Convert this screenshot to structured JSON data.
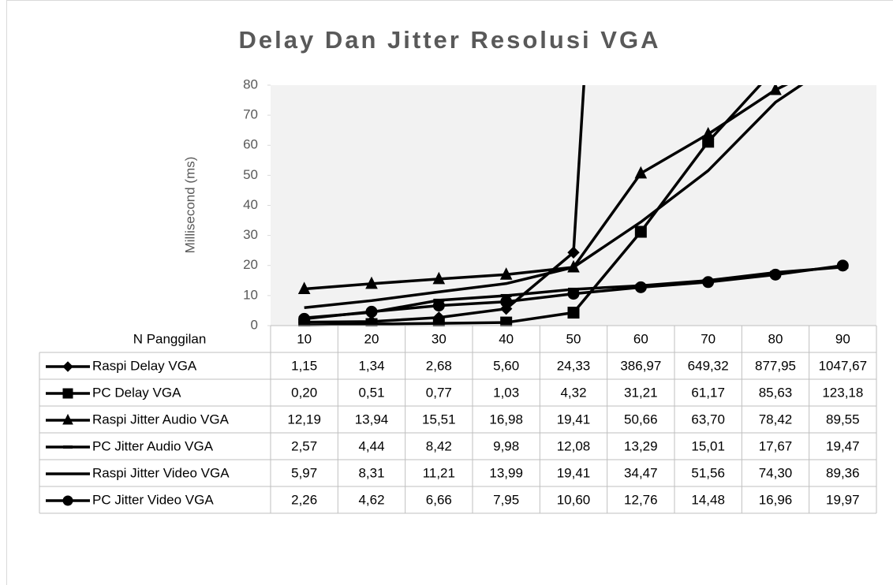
{
  "chart_data": {
    "type": "line",
    "title": "Delay Dan Jitter Resolusi VGA",
    "y_label": "Millisecond  (ms)",
    "x_label": "N Panggilan",
    "categories": [
      10,
      20,
      30,
      40,
      50,
      60,
      70,
      80,
      90
    ],
    "ylim": [
      0,
      80
    ],
    "yticks": [
      0,
      10,
      20,
      30,
      40,
      50,
      60,
      70,
      80
    ],
    "grid": false,
    "data_table": true,
    "series": [
      {
        "name": "Raspi Delay VGA",
        "color": "#000000",
        "marker": "diamond",
        "values": [
          1.15,
          1.34,
          2.68,
          5.6,
          24.33,
          386.97,
          649.32,
          877.95,
          1047.67
        ],
        "value_labels": [
          "1,15",
          "1,34",
          "2,68",
          "5,60",
          "24,33",
          "386,97",
          "649,32",
          "877,95",
          "1047,67"
        ]
      },
      {
        "name": "PC Delay VGA",
        "color": "#000000",
        "marker": "square",
        "values": [
          0.2,
          0.51,
          0.77,
          1.03,
          4.32,
          31.21,
          61.17,
          85.63,
          123.18
        ],
        "value_labels": [
          "0,20",
          "0,51",
          "0,77",
          "1,03",
          "4,32",
          "31,21",
          "61,17",
          "85,63",
          "123,18"
        ]
      },
      {
        "name": "Raspi Jitter Audio VGA",
        "color": "#000000",
        "marker": "triangle",
        "values": [
          12.19,
          13.94,
          15.51,
          16.98,
          19.41,
          50.66,
          63.7,
          78.42,
          89.55
        ],
        "value_labels": [
          "12,19",
          "13,94",
          "15,51",
          "16,98",
          "19,41",
          "50,66",
          "63,70",
          "78,42",
          "89,55"
        ]
      },
      {
        "name": "PC Jitter Audio VGA",
        "color": "#000000",
        "marker": "dash",
        "values": [
          2.57,
          4.44,
          8.42,
          9.98,
          12.08,
          13.29,
          15.01,
          17.67,
          19.47
        ],
        "value_labels": [
          "2,57",
          "4,44",
          "8,42",
          "9,98",
          "12,08",
          "13,29",
          "15,01",
          "17,67",
          "19,47"
        ]
      },
      {
        "name": "Raspi Jitter Video VGA",
        "color": "#000000",
        "marker": "none",
        "values": [
          5.97,
          8.31,
          11.21,
          13.99,
          19.41,
          34.47,
          51.56,
          74.3,
          89.36
        ],
        "value_labels": [
          "5,97",
          "8,31",
          "11,21",
          "13,99",
          "19,41",
          "34,47",
          "51,56",
          "74,30",
          "89,36"
        ]
      },
      {
        "name": "PC Jitter Video VGA",
        "color": "#000000",
        "marker": "circle",
        "values": [
          2.26,
          4.62,
          6.66,
          7.95,
          10.6,
          12.76,
          14.48,
          16.96,
          19.97
        ],
        "value_labels": [
          "2,26",
          "4,62",
          "6,66",
          "7,95",
          "10,60",
          "12,76",
          "14,48",
          "16,96",
          "19,97"
        ]
      }
    ]
  }
}
